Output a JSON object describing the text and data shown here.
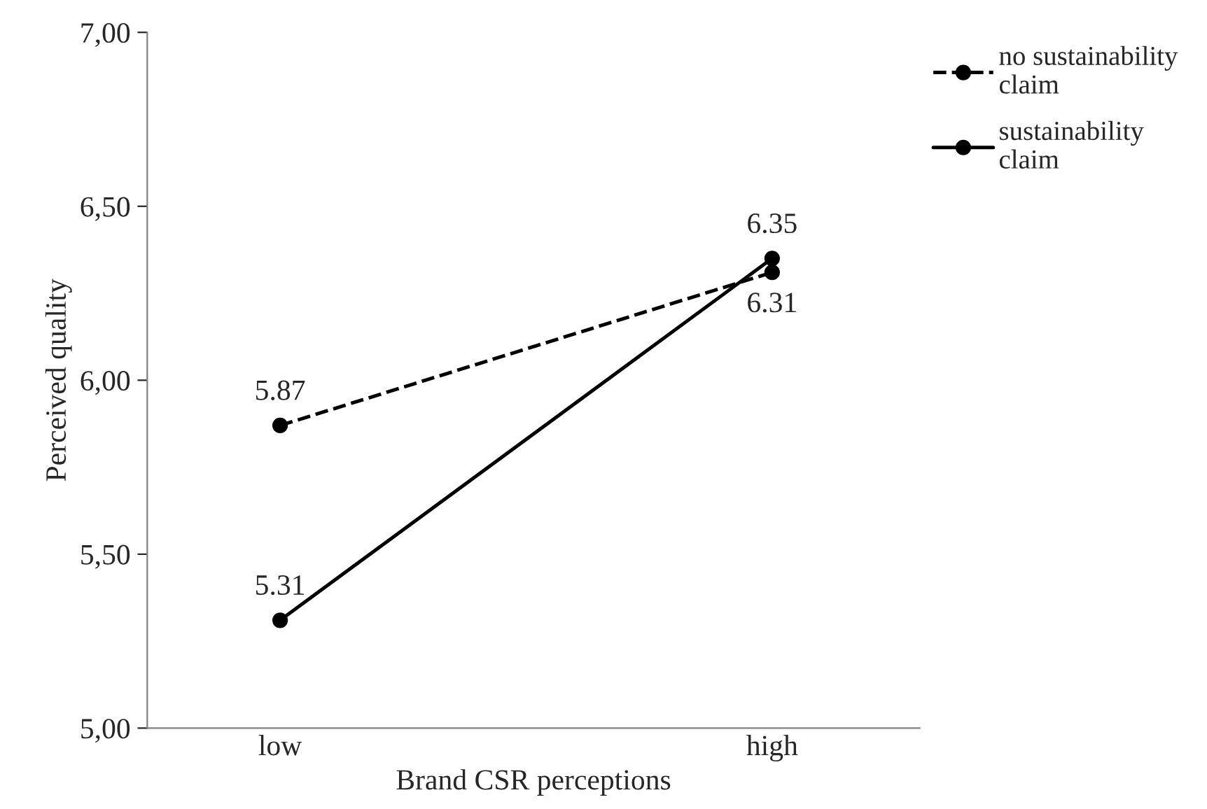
{
  "chart_data": {
    "type": "line",
    "xlabel": "Brand CSR perceptions",
    "ylabel": "Perceived quality",
    "categories": [
      "low",
      "high"
    ],
    "series": [
      {
        "name": "no sustainability\nclaim",
        "color": "#000000",
        "line_style": "dashed",
        "values": [
          5.87,
          6.31
        ]
      },
      {
        "name": "sustainability\nclaim",
        "color": "#000000",
        "line_style": "solid",
        "values": [
          5.31,
          6.35
        ]
      }
    ],
    "ylim": [
      5,
      7
    ],
    "yticks": [
      {
        "value": 5,
        "label": "5,00"
      },
      {
        "value": 5.5,
        "label": "5,50"
      },
      {
        "value": 6,
        "label": "6,00"
      },
      {
        "value": 6.5,
        "label": "6,50"
      },
      {
        "value": 7,
        "label": "7,00"
      }
    ],
    "data_labels": true,
    "marker": "circle",
    "grid": false,
    "legend": "top right"
  }
}
